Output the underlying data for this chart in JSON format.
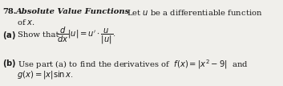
{
  "bg_color": "#f0efeb",
  "text_color": "#1a1a1a",
  "figsize": [
    3.53,
    1.07
  ],
  "dpi": 100,
  "fontsize": 7.2,
  "line1_num": "78.",
  "line1_bold": "Absolute Value Functions",
  "line1_rest": " Let  u  be a differentiable function",
  "line2": "of x.",
  "line3_bold": "(a)",
  "line3_rest": " Show that ",
  "line4_bold": "(b)",
  "line4_rest": " Use part (a) to find the derivatives of  f(x) = |x² – 9|  and",
  "line5": "g(x) = |x| sin x."
}
